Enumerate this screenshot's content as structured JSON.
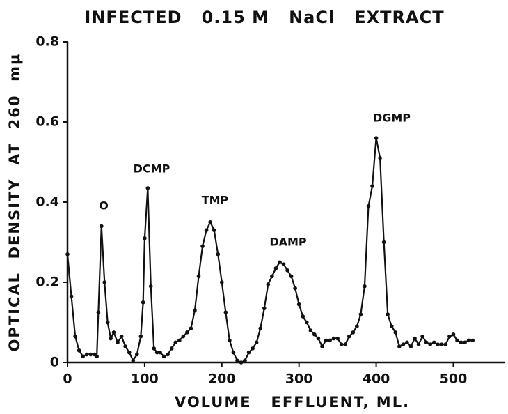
{
  "chart_data": {
    "type": "line",
    "title": "INFECTED   0.15 M   NaCl   EXTRACT",
    "x_label": "VOLUME   EFFLUENT, ML.",
    "y_label": "OPTICAL  DENSITY  AT  260  mμ",
    "annotations": [
      "O",
      "DCMP",
      "TMP",
      "DAMP",
      "DGMP"
    ],
    "color": "#111111",
    "xlim": [
      0,
      560
    ],
    "xticks": [
      0,
      100,
      200,
      300,
      400,
      500
    ],
    "ylim": [
      0,
      0.8
    ],
    "yticks": [
      0,
      0.2,
      0.4,
      0.6,
      0.8
    ],
    "x": [
      0,
      5,
      10,
      15,
      20,
      25,
      30,
      35,
      38,
      40,
      44,
      48,
      52,
      56,
      60,
      65,
      70,
      75,
      80,
      85,
      90,
      95,
      98,
      100,
      104,
      108,
      112,
      116,
      120,
      125,
      130,
      135,
      140,
      145,
      150,
      155,
      160,
      165,
      170,
      175,
      180,
      185,
      190,
      195,
      200,
      205,
      210,
      215,
      220,
      225,
      230,
      235,
      240,
      245,
      250,
      255,
      260,
      265,
      270,
      275,
      280,
      285,
      290,
      295,
      300,
      305,
      310,
      315,
      320,
      325,
      330,
      335,
      340,
      345,
      350,
      355,
      360,
      365,
      370,
      375,
      380,
      385,
      390,
      395,
      400,
      405,
      410,
      415,
      420,
      425,
      430,
      435,
      440,
      445,
      450,
      455,
      460,
      465,
      470,
      475,
      480,
      485,
      490,
      495,
      500,
      505,
      510,
      515,
      520,
      525
    ],
    "values": [
      0.27,
      0.165,
      0.065,
      0.03,
      0.015,
      0.02,
      0.02,
      0.02,
      0.015,
      0.125,
      0.34,
      0.2,
      0.1,
      0.06,
      0.075,
      0.05,
      0.065,
      0.04,
      0.025,
      0.005,
      0.02,
      0.065,
      0.15,
      0.31,
      0.435,
      0.19,
      0.035,
      0.025,
      0.025,
      0.015,
      0.02,
      0.035,
      0.05,
      0.055,
      0.065,
      0.075,
      0.085,
      0.13,
      0.215,
      0.29,
      0.33,
      0.35,
      0.33,
      0.27,
      0.2,
      0.125,
      0.055,
      0.025,
      0.005,
      0.0,
      0.005,
      0.025,
      0.035,
      0.05,
      0.085,
      0.135,
      0.195,
      0.215,
      0.235,
      0.25,
      0.245,
      0.23,
      0.215,
      0.185,
      0.145,
      0.115,
      0.1,
      0.08,
      0.07,
      0.06,
      0.04,
      0.055,
      0.055,
      0.06,
      0.06,
      0.045,
      0.045,
      0.065,
      0.075,
      0.09,
      0.12,
      0.19,
      0.39,
      0.44,
      0.56,
      0.51,
      0.3,
      0.12,
      0.09,
      0.075,
      0.04,
      0.045,
      0.05,
      0.04,
      0.06,
      0.045,
      0.065,
      0.05,
      0.045,
      0.05,
      0.045,
      0.045,
      0.045,
      0.065,
      0.07,
      0.055,
      0.05,
      0.05,
      0.055,
      0.055
    ]
  }
}
